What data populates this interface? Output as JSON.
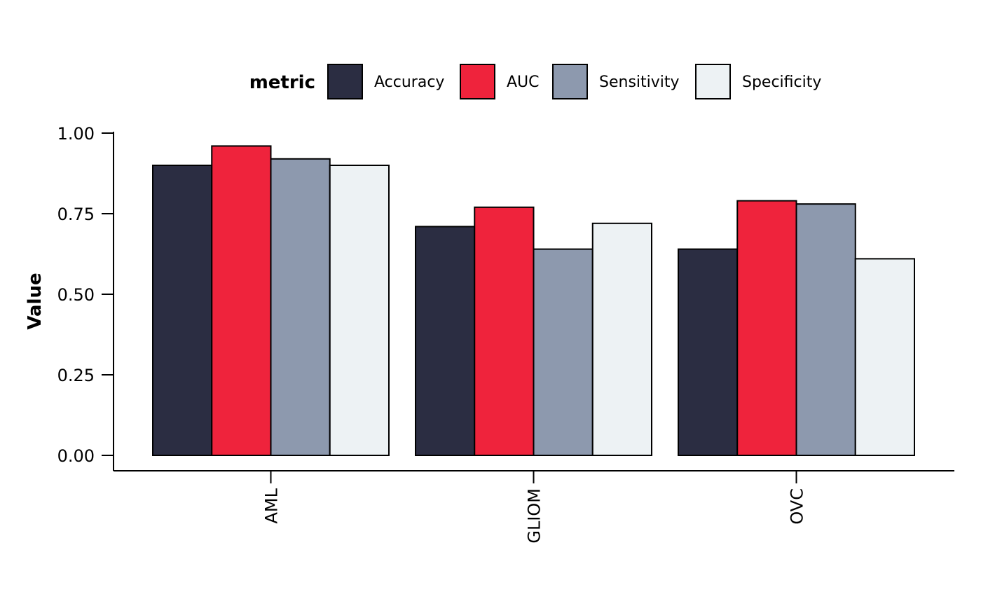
{
  "chart_data": {
    "type": "bar",
    "ylabel": "Value",
    "xlabel": "",
    "legend_title": "metric",
    "legend_position": "top",
    "grid": false,
    "ylim": [
      0,
      1
    ],
    "yticks": [
      "0.00",
      "0.25",
      "0.50",
      "0.75",
      "1.00"
    ],
    "categories": [
      "AML",
      "GLIOM",
      "OVC"
    ],
    "series": [
      {
        "name": "Accuracy",
        "color": "#2b2d42",
        "values": [
          0.9,
          0.71,
          0.64
        ]
      },
      {
        "name": "AUC",
        "color": "#ef233c",
        "values": [
          0.96,
          0.77,
          0.79
        ]
      },
      {
        "name": "Sensitivity",
        "color": "#8d99ae",
        "values": [
          0.92,
          0.64,
          0.78
        ]
      },
      {
        "name": "Specificity",
        "color": "#edf2f4",
        "values": [
          0.9,
          0.72,
          0.61
        ]
      }
    ]
  }
}
